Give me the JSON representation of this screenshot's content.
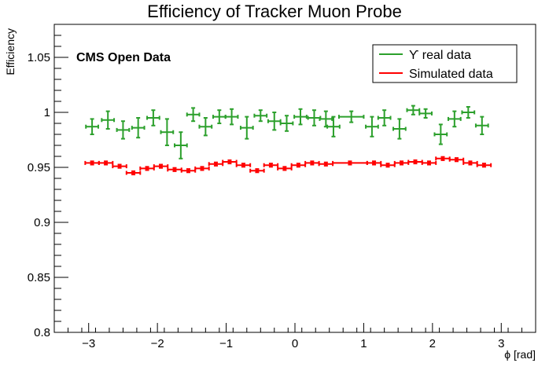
{
  "chart_data": {
    "type": "scatter",
    "title": "Efficiency of Tracker Muon Probe",
    "xlabel": "ϕ [rad]",
    "ylabel": "Efficiency",
    "xlim": [
      -3.5,
      3.5
    ],
    "ylim": [
      0.8,
      1.08
    ],
    "x_ticks": [
      -3,
      -2,
      -1,
      0,
      1,
      2,
      3
    ],
    "x_tick_labels": [
      "−3",
      "−2",
      "−1",
      "0",
      "1",
      "2",
      "3"
    ],
    "y_ticks": [
      0.8,
      0.85,
      0.9,
      0.95,
      1.0,
      1.05
    ],
    "y_tick_labels": [
      "0.8",
      "0.85",
      "0.9",
      "0.95",
      "1",
      "1.05"
    ],
    "annotation": "CMS Open Data",
    "legend_position": "top-right",
    "grid": false,
    "series": [
      {
        "name": "ϒ real data",
        "color": "#2ca02c",
        "points": [
          {
            "x": -2.95,
            "xerr": 0.09,
            "y": 0.987,
            "yerr": 0.007
          },
          {
            "x": -2.72,
            "xerr": 0.09,
            "y": 0.993,
            "yerr": 0.008
          },
          {
            "x": -2.5,
            "xerr": 0.09,
            "y": 0.984,
            "yerr": 0.008
          },
          {
            "x": -2.28,
            "xerr": 0.09,
            "y": 0.986,
            "yerr": 0.009
          },
          {
            "x": -2.06,
            "xerr": 0.09,
            "y": 0.995,
            "yerr": 0.007
          },
          {
            "x": -1.86,
            "xerr": 0.09,
            "y": 0.982,
            "yerr": 0.012
          },
          {
            "x": -1.66,
            "xerr": 0.09,
            "y": 0.97,
            "yerr": 0.012
          },
          {
            "x": -1.48,
            "xerr": 0.09,
            "y": 0.998,
            "yerr": 0.006
          },
          {
            "x": -1.3,
            "xerr": 0.09,
            "y": 0.987,
            "yerr": 0.008
          },
          {
            "x": -1.1,
            "xerr": 0.09,
            "y": 0.996,
            "yerr": 0.006
          },
          {
            "x": -0.92,
            "xerr": 0.09,
            "y": 0.996,
            "yerr": 0.007
          },
          {
            "x": -0.7,
            "xerr": 0.09,
            "y": 0.986,
            "yerr": 0.01
          },
          {
            "x": -0.5,
            "xerr": 0.09,
            "y": 0.997,
            "yerr": 0.005
          },
          {
            "x": -0.3,
            "xerr": 0.09,
            "y": 0.992,
            "yerr": 0.008
          },
          {
            "x": -0.12,
            "xerr": 0.09,
            "y": 0.99,
            "yerr": 0.007
          },
          {
            "x": 0.08,
            "xerr": 0.09,
            "y": 0.996,
            "yerr": 0.007
          },
          {
            "x": 0.28,
            "xerr": 0.09,
            "y": 0.995,
            "yerr": 0.007
          },
          {
            "x": 0.45,
            "xerr": 0.09,
            "y": 0.994,
            "yerr": 0.007
          },
          {
            "x": 0.56,
            "xerr": 0.09,
            "y": 0.987,
            "yerr": 0.009
          },
          {
            "x": 0.82,
            "xerr": 0.18,
            "y": 0.996,
            "yerr": 0.005
          },
          {
            "x": 1.12,
            "xerr": 0.09,
            "y": 0.987,
            "yerr": 0.009
          },
          {
            "x": 1.3,
            "xerr": 0.09,
            "y": 0.995,
            "yerr": 0.007
          },
          {
            "x": 1.52,
            "xerr": 0.09,
            "y": 0.985,
            "yerr": 0.009
          },
          {
            "x": 1.72,
            "xerr": 0.09,
            "y": 1.002,
            "yerr": 0.004
          },
          {
            "x": 1.9,
            "xerr": 0.09,
            "y": 0.999,
            "yerr": 0.004
          },
          {
            "x": 2.12,
            "xerr": 0.09,
            "y": 0.98,
            "yerr": 0.009
          },
          {
            "x": 2.32,
            "xerr": 0.09,
            "y": 0.994,
            "yerr": 0.007
          },
          {
            "x": 2.52,
            "xerr": 0.09,
            "y": 1.0,
            "yerr": 0.005
          },
          {
            "x": 2.72,
            "xerr": 0.09,
            "y": 0.988,
            "yerr": 0.008
          }
        ]
      },
      {
        "name": "Simulated data",
        "color": "#ff0000",
        "points": [
          {
            "x": -2.95,
            "xerr": 0.1,
            "y": 0.954,
            "yerr": 0.0015
          },
          {
            "x": -2.75,
            "xerr": 0.1,
            "y": 0.954,
            "yerr": 0.0015
          },
          {
            "x": -2.55,
            "xerr": 0.1,
            "y": 0.951,
            "yerr": 0.0015
          },
          {
            "x": -2.35,
            "xerr": 0.1,
            "y": 0.945,
            "yerr": 0.0015
          },
          {
            "x": -2.15,
            "xerr": 0.1,
            "y": 0.949,
            "yerr": 0.0015
          },
          {
            "x": -1.95,
            "xerr": 0.1,
            "y": 0.951,
            "yerr": 0.0015
          },
          {
            "x": -1.75,
            "xerr": 0.1,
            "y": 0.948,
            "yerr": 0.0015
          },
          {
            "x": -1.55,
            "xerr": 0.1,
            "y": 0.947,
            "yerr": 0.0015
          },
          {
            "x": -1.35,
            "xerr": 0.1,
            "y": 0.949,
            "yerr": 0.0015
          },
          {
            "x": -1.15,
            "xerr": 0.1,
            "y": 0.953,
            "yerr": 0.0015
          },
          {
            "x": -0.95,
            "xerr": 0.1,
            "y": 0.955,
            "yerr": 0.0015
          },
          {
            "x": -0.75,
            "xerr": 0.1,
            "y": 0.952,
            "yerr": 0.0015
          },
          {
            "x": -0.55,
            "xerr": 0.1,
            "y": 0.947,
            "yerr": 0.0015
          },
          {
            "x": -0.35,
            "xerr": 0.1,
            "y": 0.952,
            "yerr": 0.0015
          },
          {
            "x": -0.15,
            "xerr": 0.1,
            "y": 0.949,
            "yerr": 0.0015
          },
          {
            "x": 0.05,
            "xerr": 0.1,
            "y": 0.952,
            "yerr": 0.0015
          },
          {
            "x": 0.25,
            "xerr": 0.1,
            "y": 0.954,
            "yerr": 0.0015
          },
          {
            "x": 0.45,
            "xerr": 0.1,
            "y": 0.953,
            "yerr": 0.0015
          },
          {
            "x": 0.8,
            "xerr": 0.25,
            "y": 0.954,
            "yerr": 0.0015
          },
          {
            "x": 1.15,
            "xerr": 0.1,
            "y": 0.954,
            "yerr": 0.0015
          },
          {
            "x": 1.35,
            "xerr": 0.1,
            "y": 0.952,
            "yerr": 0.0015
          },
          {
            "x": 1.55,
            "xerr": 0.1,
            "y": 0.954,
            "yerr": 0.0015
          },
          {
            "x": 1.75,
            "xerr": 0.1,
            "y": 0.955,
            "yerr": 0.0015
          },
          {
            "x": 1.95,
            "xerr": 0.1,
            "y": 0.954,
            "yerr": 0.0015
          },
          {
            "x": 2.15,
            "xerr": 0.1,
            "y": 0.958,
            "yerr": 0.0015
          },
          {
            "x": 2.35,
            "xerr": 0.1,
            "y": 0.957,
            "yerr": 0.0015
          },
          {
            "x": 2.55,
            "xerr": 0.1,
            "y": 0.954,
            "yerr": 0.0015
          },
          {
            "x": 2.75,
            "xerr": 0.1,
            "y": 0.952,
            "yerr": 0.0015
          }
        ]
      }
    ]
  }
}
